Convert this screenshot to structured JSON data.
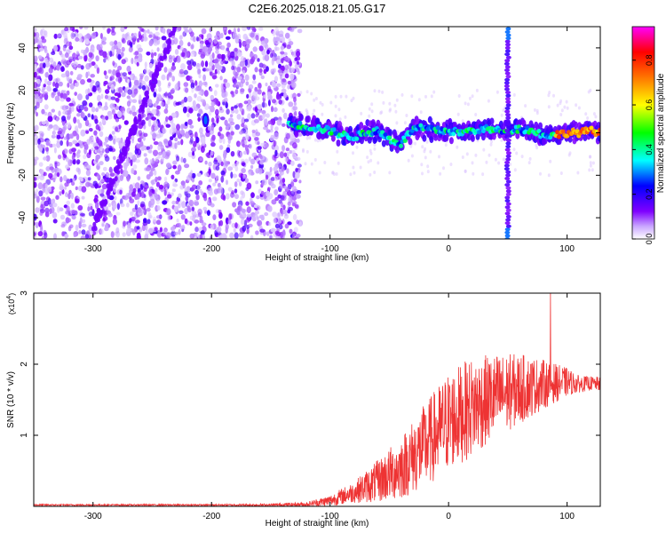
{
  "figure": {
    "title": "C2E6.2025.018.21.05.G17"
  },
  "chart_data": [
    {
      "type": "heatmap",
      "xlabel": "Height of straight line (km)",
      "ylabel": "Frequency (Hz)",
      "xlim": [
        -350,
        128
      ],
      "ylim": [
        -50,
        50
      ],
      "x_ticks": [
        -300,
        -200,
        -100,
        0,
        100
      ],
      "y_ticks": [
        -40,
        -20,
        0,
        20,
        40
      ],
      "colorbar": {
        "label": "Normalized spectral amplitude",
        "ticks": [
          0.0,
          0.2,
          0.4,
          0.6,
          0.8
        ],
        "tick_labels": [
          "0.0",
          "0.2",
          "0.4",
          "0.6",
          "0.8"
        ],
        "range": [
          0,
          0.95
        ],
        "colors": [
          "#ffffff",
          "#7f00ff",
          "#0000ff",
          "#00ffff",
          "#00ff00",
          "#ffff00",
          "#ff8000",
          "#ff0000",
          "#ff00ff"
        ]
      },
      "noise_region": {
        "x_range": [
          -350,
          -125
        ],
        "y_range": [
          -50,
          50
        ]
      },
      "signal_track": {
        "x": [
          -135,
          -120,
          -100,
          -90,
          -80,
          -70,
          -60,
          -50,
          -40,
          -30,
          -20,
          -10,
          0,
          10,
          20,
          30,
          40,
          45,
          60,
          70,
          80,
          90,
          100,
          110,
          120,
          128
        ],
        "y": [
          4,
          3,
          1,
          -1,
          -2,
          0,
          1,
          -3,
          -5,
          2,
          2,
          1,
          1,
          0,
          1,
          2,
          1,
          1,
          2,
          1,
          -1,
          -1,
          0,
          0,
          1,
          0
        ]
      },
      "spike": {
        "x": 50,
        "y_range": [
          -50,
          50
        ]
      },
      "grid": false
    },
    {
      "type": "line",
      "xlabel": "Height of straight line (km)",
      "ylabel": "SNR (10 * v/v)",
      "y_multiplier_label": "(x10",
      "y_multiplier_exp": "4",
      "y_multiplier_close": ")",
      "xlim": [
        -350,
        128
      ],
      "ylim": [
        0,
        3
      ],
      "x_ticks": [
        -300,
        -200,
        -100,
        0,
        100
      ],
      "y_ticks": [
        1,
        2,
        3
      ],
      "series": [
        {
          "color": "#ee3333",
          "x": [
            -350,
            -300,
            -250,
            -200,
            -150,
            -120,
            -100,
            -80,
            -60,
            -40,
            -20,
            0,
            20,
            40,
            60,
            80,
            100,
            110,
            120,
            128
          ],
          "y": [
            0.02,
            0.02,
            0.02,
            0.02,
            0.02,
            0.03,
            0.08,
            0.2,
            0.35,
            0.55,
            0.85,
            1.2,
            1.4,
            1.55,
            1.65,
            1.72,
            1.75,
            1.72,
            1.73,
            1.72
          ],
          "amplitude": [
            0.01,
            0.01,
            0.01,
            0.01,
            0.02,
            0.03,
            0.08,
            0.15,
            0.3,
            0.45,
            0.6,
            0.7,
            0.7,
            0.6,
            0.5,
            0.35,
            0.2,
            0.12,
            0.1,
            0.1
          ],
          "peak": {
            "x": 86,
            "y": 3.0
          }
        }
      ],
      "grid": false
    }
  ]
}
